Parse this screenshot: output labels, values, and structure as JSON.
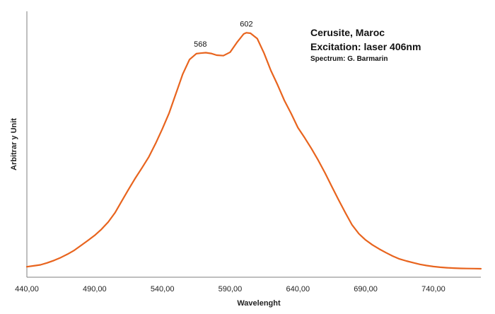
{
  "chart_data": {
    "type": "line",
    "title": "",
    "xlabel": "Wavelenght",
    "ylabel": "Arbitrar y Unit",
    "xlim": [
      440,
      775
    ],
    "ylim": [
      0,
      100
    ],
    "x_ticks": [
      440,
      490,
      540,
      590,
      640,
      690,
      740
    ],
    "x_tick_labels": [
      "440,00",
      "490,00",
      "540,00",
      "590,00",
      "640,00",
      "690,00",
      "740,00"
    ],
    "grid": false,
    "legend": "none",
    "series_color": "#e8641e",
    "series": [
      {
        "x": [
          440,
          445,
          450,
          455,
          460,
          465,
          470,
          475,
          480,
          485,
          490,
          495,
          500,
          505,
          510,
          515,
          520,
          525,
          530,
          535,
          540,
          545,
          550,
          555,
          560,
          565,
          568,
          572,
          576,
          580,
          585,
          590,
          595,
          600,
          602,
          605,
          610,
          615,
          620,
          625,
          630,
          635,
          640,
          645,
          650,
          655,
          660,
          665,
          670,
          675,
          680,
          685,
          690,
          695,
          700,
          705,
          710,
          715,
          720,
          725,
          730,
          735,
          740,
          745,
          750,
          755,
          760,
          765,
          770,
          775
        ],
        "y": [
          0.8,
          1.2,
          1.6,
          2.4,
          3.4,
          4.6,
          6.0,
          7.6,
          9.6,
          11.6,
          13.7,
          16.2,
          19.2,
          23.0,
          27.8,
          32.6,
          37.2,
          41.5,
          46.0,
          51.5,
          57.5,
          64.0,
          72.0,
          80.0,
          86.0,
          88.4,
          88.6,
          88.8,
          88.5,
          87.8,
          87.6,
          89.0,
          93.0,
          96.5,
          97.0,
          96.8,
          94.6,
          88.6,
          81.5,
          75.6,
          69.2,
          63.8,
          58.0,
          53.8,
          49.4,
          44.6,
          39.4,
          33.8,
          28.3,
          23.0,
          18.0,
          14.4,
          11.8,
          9.8,
          8.1,
          6.6,
          5.2,
          4.0,
          3.2,
          2.5,
          1.8,
          1.3,
          0.9,
          0.6,
          0.4,
          0.25,
          0.15,
          0.1,
          0.05,
          0.0
        ]
      }
    ],
    "peak_labels": [
      {
        "x": 568,
        "y": 88.6,
        "text": "568"
      },
      {
        "x": 602,
        "y": 97.0,
        "text": "602"
      }
    ]
  },
  "annotation": {
    "title_line1": "Cerusite, Maroc",
    "title_line2": "Excitation:  laser 406nm",
    "credit": "Spectrum: G. Barmarin"
  }
}
